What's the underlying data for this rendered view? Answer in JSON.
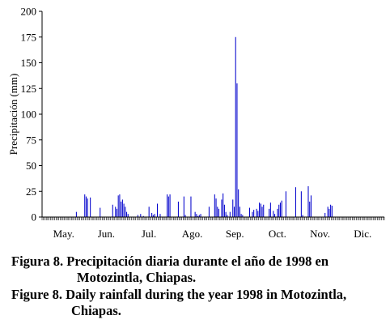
{
  "chart_data": {
    "type": "bar",
    "title": "",
    "xlabel": "",
    "ylabel": "Precipitación (mm)",
    "ylim": [
      0,
      200
    ],
    "yticks": [
      0,
      25,
      50,
      75,
      100,
      125,
      150,
      175,
      200
    ],
    "xlim_day_of_year": [
      121,
      365
    ],
    "bar_color": "#0000cc",
    "grid": false,
    "months": [
      {
        "label": "May.",
        "start_day": 121,
        "end_day": 151
      },
      {
        "label": "Jun.",
        "start_day": 152,
        "end_day": 181
      },
      {
        "label": "Jul.",
        "start_day": 182,
        "end_day": 212
      },
      {
        "label": "Ago.",
        "start_day": 213,
        "end_day": 243
      },
      {
        "label": "Sep.",
        "start_day": 244,
        "end_day": 273
      },
      {
        "label": "Oct.",
        "start_day": 274,
        "end_day": 304
      },
      {
        "label": "Nov.",
        "start_day": 305,
        "end_day": 334
      },
      {
        "label": "Dic.",
        "start_day": 335,
        "end_day": 365
      }
    ],
    "series": [
      {
        "x_day_of_year": [
          145,
          151,
          152,
          153,
          155,
          162,
          171,
          173,
          174,
          175,
          176,
          177,
          178,
          179,
          180,
          181,
          182,
          189,
          191,
          193,
          197,
          199,
          200,
          201,
          203,
          205,
          210,
          211,
          212,
          218,
          222,
          223,
          227,
          230,
          231,
          232,
          233,
          234,
          240,
          244,
          245,
          246,
          247,
          249,
          250,
          251,
          252,
          253,
          255,
          257,
          258,
          259,
          260,
          261,
          262,
          263,
          264,
          269,
          271,
          272,
          274,
          275,
          276,
          277,
          278,
          279,
          283,
          284,
          286,
          287,
          289,
          290,
          291,
          292,
          295,
          302,
          306,
          307,
          311,
          312,
          313,
          323,
          325,
          326,
          327,
          328
        ],
        "values": [
          5,
          22,
          20,
          18,
          19,
          9,
          12,
          10,
          8,
          21,
          22,
          15,
          17,
          13,
          10,
          5,
          3,
          2,
          3,
          1,
          10,
          4,
          2,
          3,
          13,
          3,
          22,
          20,
          22,
          15,
          20,
          2,
          20,
          5,
          3,
          1,
          2,
          3,
          10,
          22,
          18,
          10,
          8,
          17,
          23,
          12,
          5,
          2,
          5,
          17,
          10,
          175,
          130,
          27,
          10,
          3,
          2,
          9,
          5,
          7,
          8,
          6,
          14,
          13,
          10,
          12,
          8,
          14,
          6,
          3,
          8,
          12,
          14,
          16,
          25,
          29,
          25,
          2,
          30,
          15,
          21,
          4,
          10,
          8,
          12,
          11
        ]
      }
    ]
  },
  "captions": {
    "es_line1": "Figura 8. Precipitación diaria durante el año de 1998 en",
    "es_line2": "Motozintla, Chiapas.",
    "en_line1": "Figure 8. Daily rainfall during the year 1998 in Motozintla,",
    "en_line2": "Chiapas."
  }
}
